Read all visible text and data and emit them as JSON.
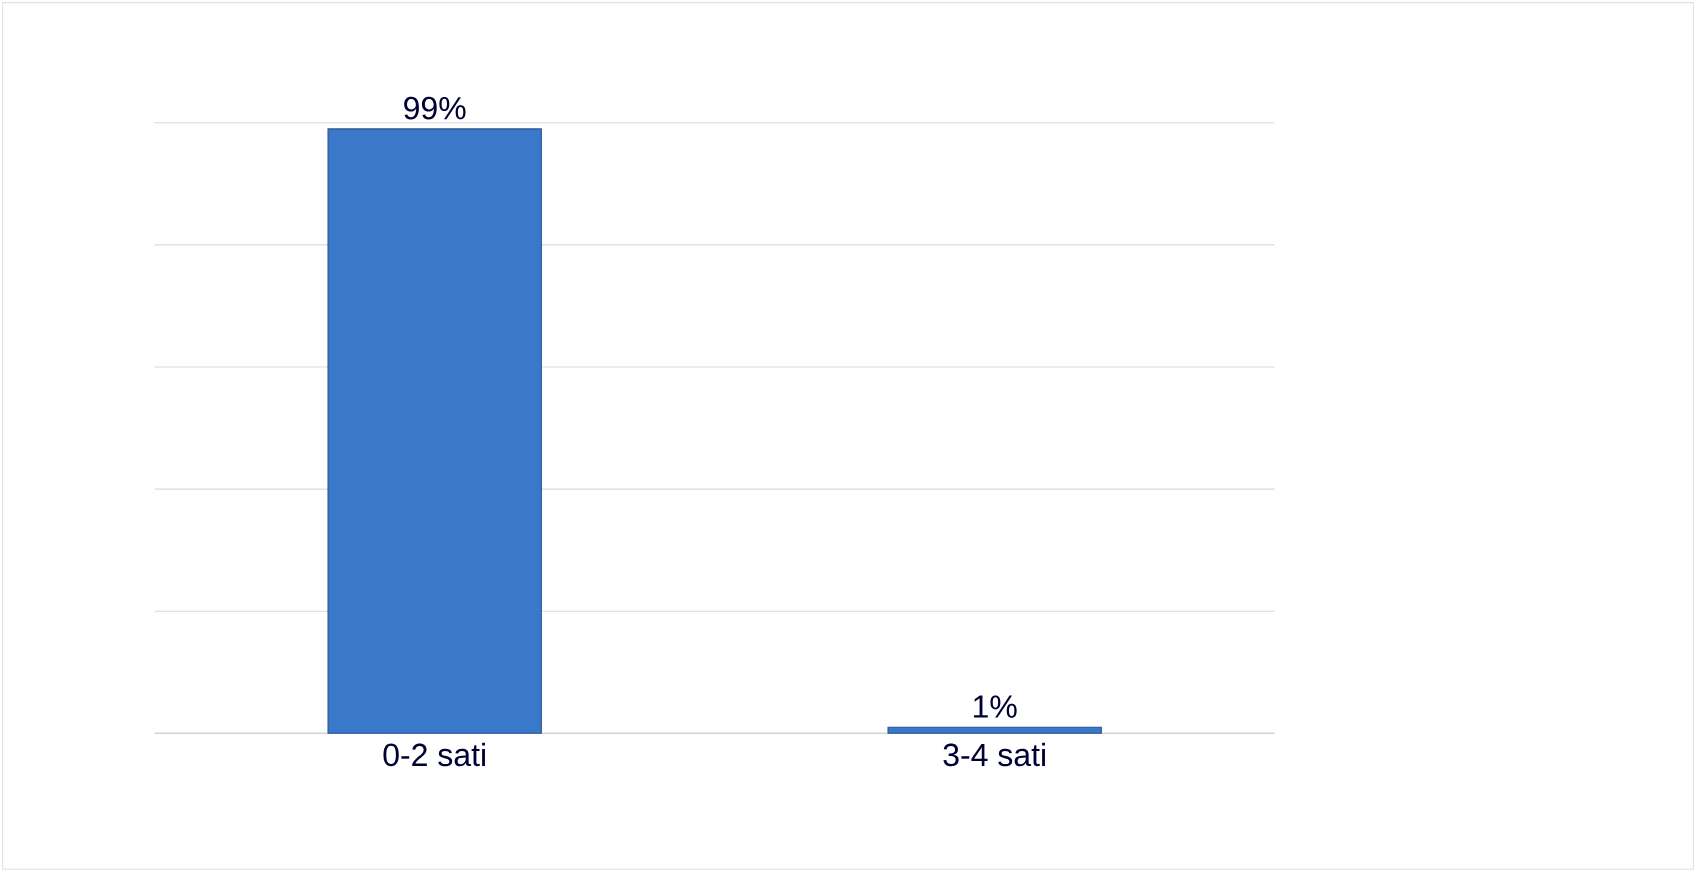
{
  "chart_data": {
    "type": "bar",
    "categories": [
      "0-2 sati",
      "3-4 sati"
    ],
    "values": [
      99,
      1
    ],
    "color": "#3a78c9",
    "value_labels": [
      "99%",
      "1%"
    ],
    "grid": "y",
    "tick_labels": "x"
  }
}
